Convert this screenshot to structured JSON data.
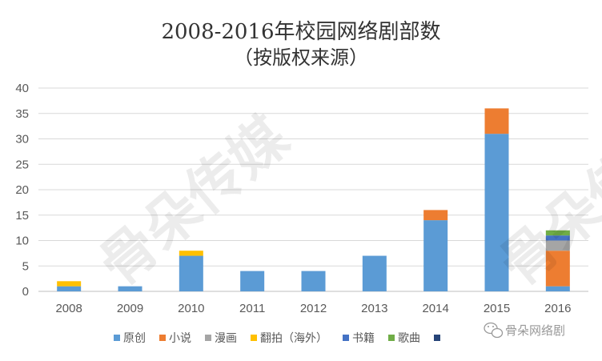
{
  "chart_data": {
    "type": "bar",
    "stacked": true,
    "title": "2008-2016年校园网络剧部数",
    "subtitle": "（按版权来源）",
    "categories": [
      "2008",
      "2009",
      "2010",
      "2011",
      "2012",
      "2013",
      "2014",
      "2015",
      "2016"
    ],
    "ylim": [
      0,
      40
    ],
    "yticks": [
      0,
      5,
      10,
      15,
      20,
      25,
      30,
      35,
      40
    ],
    "grid": true,
    "legend_position": "bottom",
    "series": [
      {
        "name": "原创",
        "color": "#5B9BD5",
        "values": [
          1,
          1,
          7,
          4,
          4,
          7,
          14,
          31,
          1
        ]
      },
      {
        "name": "小说",
        "color": "#ED7D31",
        "values": [
          0,
          0,
          0,
          0,
          0,
          0,
          2,
          5,
          7
        ]
      },
      {
        "name": "漫画",
        "color": "#A5A5A5",
        "values": [
          0,
          0,
          0,
          0,
          0,
          0,
          0,
          0,
          2
        ]
      },
      {
        "name": "翻拍（海外）",
        "color": "#FFC000",
        "values": [
          1,
          0,
          1,
          0,
          0,
          0,
          0,
          0,
          0
        ]
      },
      {
        "name": "书籍",
        "color": "#4472C4",
        "values": [
          0,
          0,
          0,
          0,
          0,
          0,
          0,
          0,
          1
        ]
      },
      {
        "name": "歌曲",
        "color": "#70AD47",
        "values": [
          0,
          0,
          0,
          0,
          0,
          0,
          0,
          0,
          1
        ]
      },
      {
        "name": "",
        "color": "#264478",
        "values": [
          0,
          0,
          0,
          0,
          0,
          0,
          0,
          0,
          0
        ]
      }
    ]
  },
  "watermark": {
    "corner_text": "骨朵网络剧",
    "diagonal_text": "骨朵传媒"
  }
}
